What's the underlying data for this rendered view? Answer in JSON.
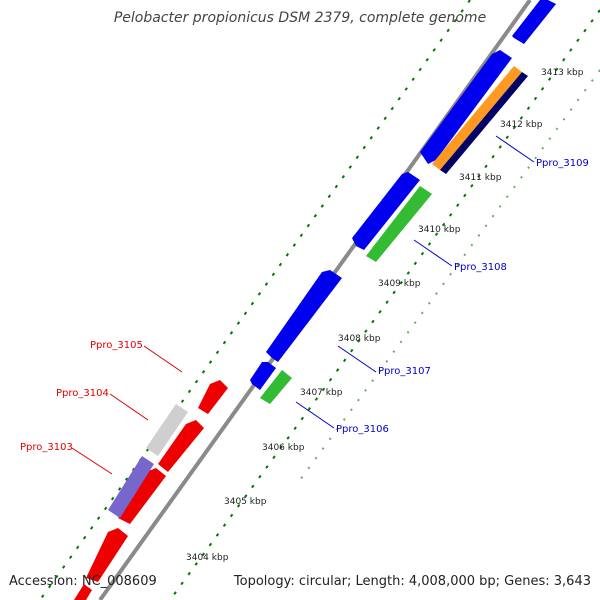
{
  "title": "Pelobacter propionicus DSM 2379, complete genome",
  "footer": {
    "accession": "Accession: NC_008609",
    "topology": "Topology: circular; Length: 4,008,000 bp; Genes: 3,643"
  },
  "ticks": [
    "3404 kbp",
    "3405 kbp",
    "3406 kbp",
    "3407 kbp",
    "3408 kbp",
    "3409 kbp",
    "3410 kbp",
    "3411 kbp",
    "3412 kbp",
    "3413 kbp"
  ],
  "gene_labels": [
    {
      "text": "Ppro_3103",
      "color": "#dd0000"
    },
    {
      "text": "Ppro_3104",
      "color": "#dd0000"
    },
    {
      "text": "Ppro_3105",
      "color": "#dd0000"
    },
    {
      "text": "Ppro_3106",
      "color": "#0000cc"
    },
    {
      "text": "Ppro_3107",
      "color": "#0000cc"
    },
    {
      "text": "Ppro_3108",
      "color": "#0000cc"
    },
    {
      "text": "Ppro_3109",
      "color": "#0000cc"
    }
  ],
  "colors": {
    "backbone": "#8a8a8a",
    "forward_cds": "#0000ee",
    "reverse_cds": "#ee0000",
    "rna": "#33bb33",
    "ticks": "#007700",
    "pale_feature": "#cfcfcf",
    "purple_feature": "#7766cc",
    "orange_feature": "#ff9922",
    "navy_feature": "#000066"
  }
}
